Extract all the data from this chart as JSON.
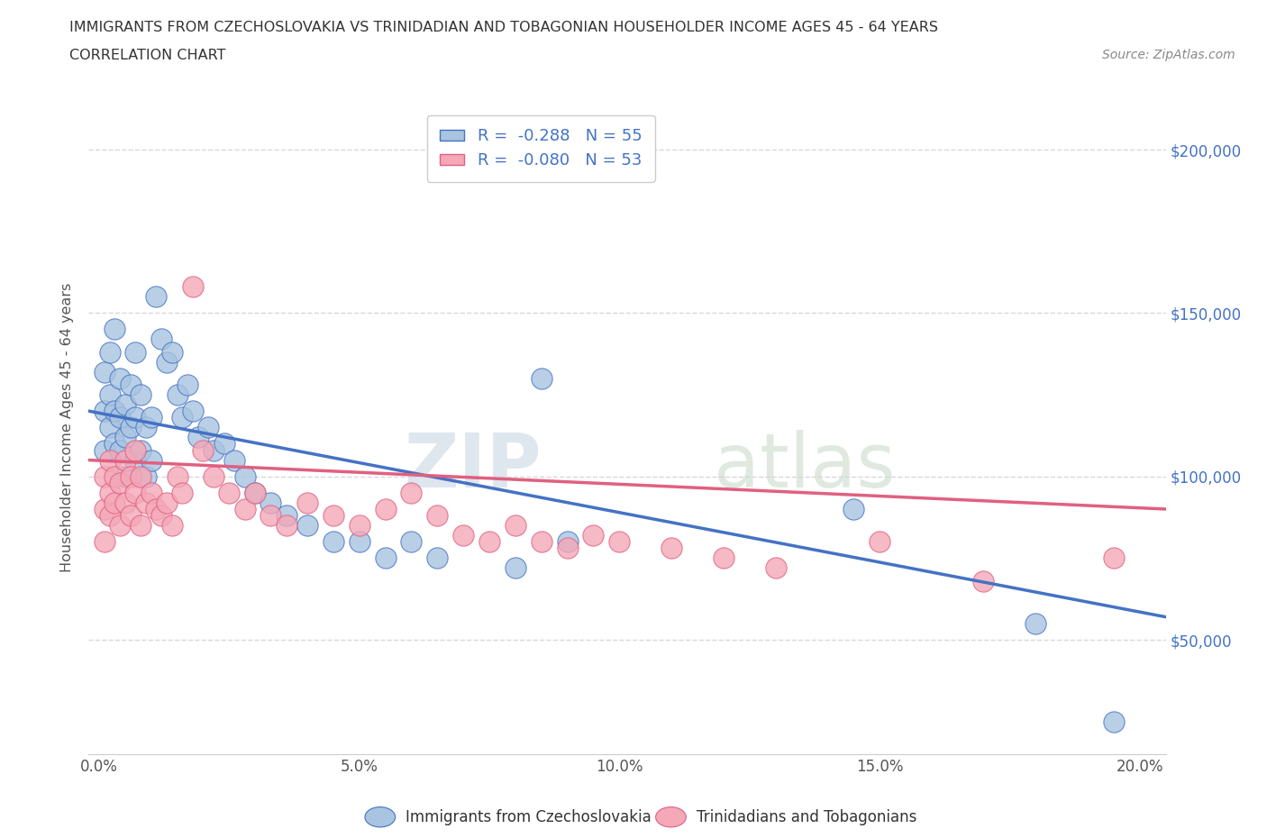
{
  "title_line1": "IMMIGRANTS FROM CZECHOSLOVAKIA VS TRINIDADIAN AND TOBAGONIAN HOUSEHOLDER INCOME AGES 45 - 64 YEARS",
  "title_line2": "CORRELATION CHART",
  "source": "Source: ZipAtlas.com",
  "ylabel": "Householder Income Ages 45 - 64 years",
  "xlim": [
    -0.002,
    0.205
  ],
  "ylim": [
    15000,
    215000
  ],
  "xtick_labels": [
    "0.0%",
    "5.0%",
    "10.0%",
    "15.0%",
    "20.0%"
  ],
  "xtick_vals": [
    0.0,
    0.05,
    0.1,
    0.15,
    0.2
  ],
  "ytick_vals": [
    50000,
    100000,
    150000,
    200000
  ],
  "ytick_labels": [
    "$50,000",
    "$100,000",
    "$150,000",
    "$200,000"
  ],
  "legend_r1": "R =  -0.288   N = 55",
  "legend_r2": "R =  -0.080   N = 53",
  "color_blue": "#a8c4e0",
  "color_pink": "#f4a8b8",
  "line_blue": "#4472c4",
  "line_pink": "#e06080",
  "watermark_zip": "ZIP",
  "watermark_atlas": "atlas",
  "background": "#ffffff",
  "grid_color": "#d8d8d8",
  "blue_x": [
    0.001,
    0.001,
    0.001,
    0.002,
    0.002,
    0.002,
    0.003,
    0.003,
    0.003,
    0.004,
    0.004,
    0.004,
    0.005,
    0.005,
    0.005,
    0.006,
    0.006,
    0.007,
    0.007,
    0.007,
    0.008,
    0.008,
    0.009,
    0.009,
    0.01,
    0.01,
    0.011,
    0.012,
    0.013,
    0.014,
    0.015,
    0.016,
    0.017,
    0.018,
    0.019,
    0.021,
    0.022,
    0.024,
    0.026,
    0.028,
    0.03,
    0.033,
    0.036,
    0.04,
    0.045,
    0.05,
    0.055,
    0.06,
    0.065,
    0.08,
    0.085,
    0.09,
    0.145,
    0.18,
    0.195
  ],
  "blue_y": [
    120000,
    108000,
    132000,
    115000,
    125000,
    138000,
    110000,
    120000,
    145000,
    108000,
    118000,
    130000,
    100000,
    112000,
    122000,
    115000,
    128000,
    105000,
    118000,
    138000,
    108000,
    125000,
    100000,
    115000,
    105000,
    118000,
    155000,
    142000,
    135000,
    138000,
    125000,
    118000,
    128000,
    120000,
    112000,
    115000,
    108000,
    110000,
    105000,
    100000,
    95000,
    92000,
    88000,
    85000,
    80000,
    80000,
    75000,
    80000,
    75000,
    72000,
    130000,
    80000,
    90000,
    55000,
    25000
  ],
  "pink_x": [
    0.001,
    0.001,
    0.001,
    0.002,
    0.002,
    0.002,
    0.003,
    0.003,
    0.004,
    0.004,
    0.005,
    0.005,
    0.006,
    0.006,
    0.007,
    0.007,
    0.008,
    0.008,
    0.009,
    0.01,
    0.011,
    0.012,
    0.013,
    0.014,
    0.015,
    0.016,
    0.018,
    0.02,
    0.022,
    0.025,
    0.028,
    0.03,
    0.033,
    0.036,
    0.04,
    0.045,
    0.05,
    0.055,
    0.06,
    0.065,
    0.07,
    0.075,
    0.08,
    0.085,
    0.09,
    0.095,
    0.1,
    0.11,
    0.12,
    0.13,
    0.15,
    0.17,
    0.195
  ],
  "pink_y": [
    100000,
    90000,
    80000,
    95000,
    88000,
    105000,
    92000,
    100000,
    85000,
    98000,
    92000,
    105000,
    88000,
    100000,
    95000,
    108000,
    85000,
    100000,
    92000,
    95000,
    90000,
    88000,
    92000,
    85000,
    100000,
    95000,
    158000,
    108000,
    100000,
    95000,
    90000,
    95000,
    88000,
    85000,
    92000,
    88000,
    85000,
    90000,
    95000,
    88000,
    82000,
    80000,
    85000,
    80000,
    78000,
    82000,
    80000,
    78000,
    75000,
    72000,
    80000,
    68000,
    75000
  ],
  "bottom_label1": "Immigrants from Czechoslovakia",
  "bottom_label2": "Trinidadians and Tobagonians"
}
